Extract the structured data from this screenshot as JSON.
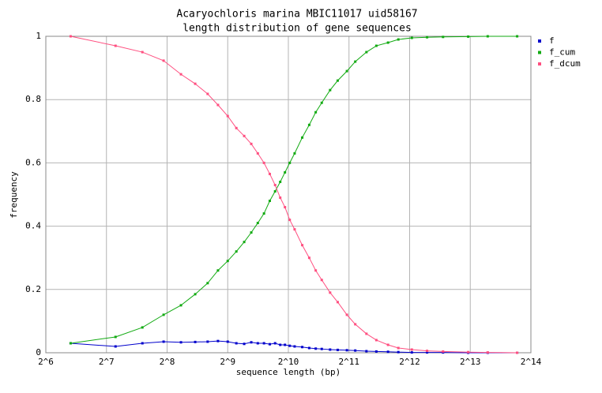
{
  "chart_data": {
    "type": "line",
    "title": "Acaryochloris marina MBIC11017 uid58167",
    "subtitle": "length distribution of gene sequences",
    "x_label": "sequence length (bp)",
    "y_label": "frequency",
    "xscale": "log2",
    "grid": true,
    "legend": "right",
    "xlim": [
      64,
      16384
    ],
    "xticks": [
      {
        "value": 64,
        "label": "2^6"
      },
      {
        "value": 128,
        "label": "2^7"
      },
      {
        "value": 256,
        "label": "2^8"
      },
      {
        "value": 512,
        "label": "2^9"
      },
      {
        "value": 1024,
        "label": "2^10"
      },
      {
        "value": 2048,
        "label": "2^11"
      },
      {
        "value": 4096,
        "label": "2^12"
      },
      {
        "value": 8192,
        "label": "2^13"
      },
      {
        "value": 16384,
        "label": "2^14"
      }
    ],
    "ylim": [
      0,
      1
    ],
    "yticks": [
      0,
      0.2,
      0.4,
      0.6,
      0.8,
      1
    ],
    "x": [
      85,
      142,
      193,
      246,
      300,
      353,
      407,
      458,
      512,
      565,
      618,
      670,
      722,
      775,
      828,
      880,
      933,
      985,
      1040,
      1100,
      1200,
      1300,
      1400,
      1500,
      1650,
      1800,
      2000,
      2200,
      2500,
      2800,
      3200,
      3600,
      4200,
      5000,
      6000,
      8000,
      10000,
      14000
    ],
    "series": [
      {
        "name": "f",
        "color": "#0000cc",
        "values": [
          0.03,
          0.02,
          0.03,
          0.035,
          0.033,
          0.034,
          0.035,
          0.037,
          0.035,
          0.03,
          0.028,
          0.033,
          0.03,
          0.03,
          0.027,
          0.03,
          0.025,
          0.025,
          0.022,
          0.02,
          0.018,
          0.015,
          0.013,
          0.012,
          0.01,
          0.009,
          0.008,
          0.007,
          0.005,
          0.004,
          0.003,
          0.002,
          0.001,
          0.001,
          0.001,
          0,
          0,
          0
        ]
      },
      {
        "name": "f_cum",
        "color": "#11aa11",
        "values": [
          0.03,
          0.05,
          0.08,
          0.12,
          0.15,
          0.185,
          0.22,
          0.26,
          0.29,
          0.32,
          0.35,
          0.38,
          0.41,
          0.44,
          0.48,
          0.51,
          0.54,
          0.57,
          0.6,
          0.63,
          0.68,
          0.72,
          0.76,
          0.79,
          0.83,
          0.86,
          0.89,
          0.92,
          0.95,
          0.97,
          0.98,
          0.99,
          0.995,
          0.997,
          0.998,
          0.999,
          1,
          1
        ]
      },
      {
        "name": "f_dcum",
        "color": "#ff4f80",
        "values": [
          1,
          0.97,
          0.95,
          0.923,
          0.88,
          0.85,
          0.818,
          0.783,
          0.748,
          0.71,
          0.685,
          0.66,
          0.63,
          0.6,
          0.565,
          0.53,
          0.49,
          0.46,
          0.42,
          0.39,
          0.34,
          0.3,
          0.26,
          0.23,
          0.19,
          0.16,
          0.12,
          0.09,
          0.06,
          0.04,
          0.025,
          0.015,
          0.01,
          0.006,
          0.004,
          0.002,
          0.001,
          0
        ]
      }
    ]
  }
}
